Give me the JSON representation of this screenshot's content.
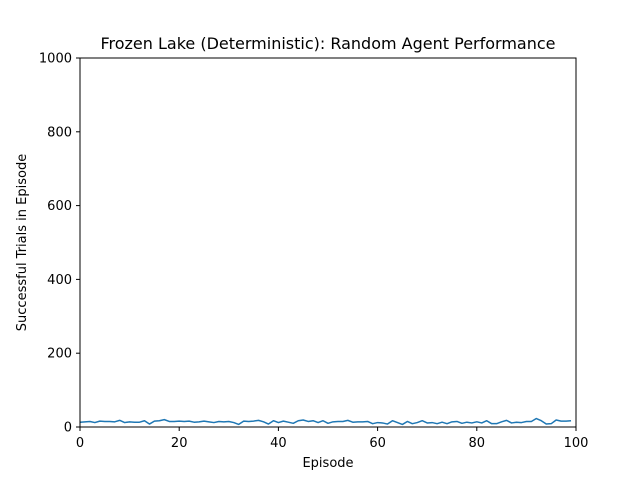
{
  "chart_data": {
    "type": "line",
    "title": "Frozen Lake (Deterministic): Random Agent Performance",
    "xlabel": "Episode",
    "ylabel": "Successful Trials in Episode",
    "xlim": [
      0,
      100
    ],
    "ylim": [
      0,
      1000
    ],
    "xticks": [
      0,
      20,
      40,
      60,
      80,
      100
    ],
    "yticks": [
      0,
      200,
      400,
      600,
      800,
      1000
    ],
    "grid": false,
    "series": [
      {
        "color": "#1f77b4",
        "x": [
          0,
          1,
          2,
          3,
          4,
          5,
          6,
          7,
          8,
          9,
          10,
          11,
          12,
          13,
          14,
          15,
          16,
          17,
          18,
          19,
          20,
          21,
          22,
          23,
          24,
          25,
          26,
          27,
          28,
          29,
          30,
          31,
          32,
          33,
          34,
          35,
          36,
          37,
          38,
          39,
          40,
          41,
          42,
          43,
          44,
          45,
          46,
          47,
          48,
          49,
          50,
          51,
          52,
          53,
          54,
          55,
          56,
          57,
          58,
          59,
          60,
          61,
          62,
          63,
          64,
          65,
          66,
          67,
          68,
          69,
          70,
          71,
          72,
          73,
          74,
          75,
          76,
          77,
          78,
          79,
          80,
          81,
          82,
          83,
          84,
          85,
          86,
          87,
          88,
          89,
          90,
          91,
          92,
          93,
          94,
          95,
          96,
          97,
          98,
          99
        ],
        "y": [
          13,
          14,
          15,
          12,
          16,
          15,
          15,
          14,
          18,
          12,
          14,
          13,
          13,
          17,
          8,
          16,
          17,
          20,
          15,
          15,
          16,
          15,
          16,
          13,
          14,
          16,
          14,
          12,
          15,
          14,
          15,
          12,
          7,
          16,
          15,
          16,
          18,
          14,
          8,
          17,
          12,
          16,
          13,
          10,
          17,
          19,
          15,
          17,
          12,
          17,
          10,
          14,
          15,
          15,
          18,
          13,
          14,
          14,
          15,
          9,
          12,
          11,
          8,
          17,
          12,
          7,
          15,
          9,
          12,
          17,
          11,
          12,
          9,
          13,
          9,
          14,
          15,
          10,
          13,
          11,
          14,
          11,
          17,
          9,
          9,
          14,
          18,
          11,
          13,
          12,
          15,
          15,
          23,
          17,
          8,
          9,
          19,
          16,
          16,
          17
        ]
      }
    ]
  }
}
